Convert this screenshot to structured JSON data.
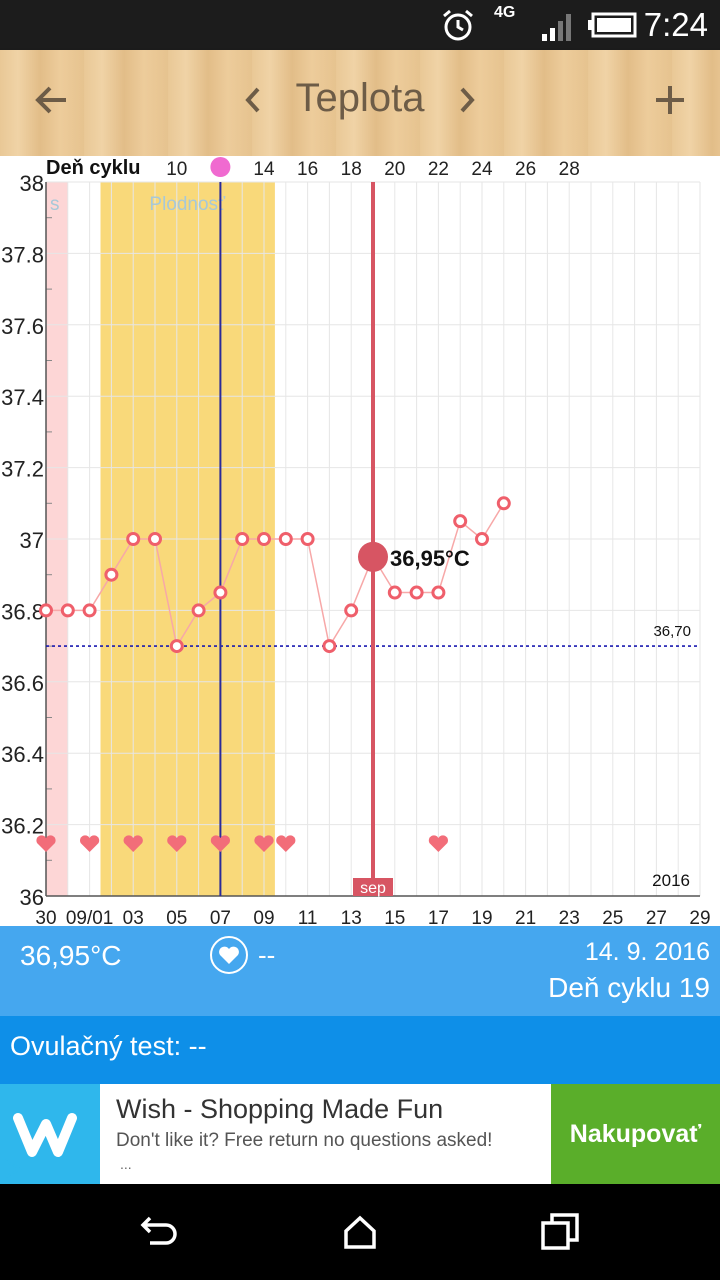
{
  "status_bar": {
    "time": "7:24",
    "network": "4G",
    "icons": [
      "alarm-icon",
      "network-4g-icon",
      "signal-icon",
      "battery-icon"
    ]
  },
  "app_bar": {
    "title": "Teplota",
    "back_icon": "arrow-left-icon",
    "prev_icon": "chevron-left-icon",
    "next_icon": "chevron-right-icon",
    "add_icon": "plus-icon"
  },
  "chart_data": {
    "type": "line",
    "top_axis_label": "Deň cyklu",
    "top_ticks": [
      "10",
      "14",
      "16",
      "18",
      "20",
      "22",
      "24",
      "26",
      "28"
    ],
    "x_labels": [
      "30",
      "09/01",
      "03",
      "05",
      "07",
      "09",
      "11",
      "13",
      "15",
      "17",
      "19",
      "21",
      "23",
      "25",
      "27",
      "29"
    ],
    "y_labels": [
      "38",
      "37.8",
      "37.6",
      "37.4",
      "37.2",
      "37",
      "36.8",
      "36.6",
      "36.4",
      "36.2",
      "36"
    ],
    "ylim": [
      36,
      38
    ],
    "year_label": "2016",
    "month_label": "sep",
    "fertile_label": "Plodnosť",
    "period_label": "s",
    "baseline": {
      "value": 36.7,
      "label": "36,70"
    },
    "series": [
      {
        "values": [
          36.8,
          36.8,
          36.8,
          36.9,
          37.0,
          37.0,
          36.7,
          36.8,
          36.85,
          37.0,
          37.0,
          37.0,
          37.0,
          36.7,
          36.8,
          36.95,
          36.85,
          36.85,
          36.85,
          37.05,
          37.0,
          37.1
        ]
      }
    ],
    "selected": {
      "index": 15,
      "label": "36,95°C"
    },
    "heart_day_indices": [
      0,
      2,
      4,
      6,
      8,
      10,
      11,
      18
    ],
    "fertile_day_range": [
      3,
      10
    ],
    "period_day_range": [
      0,
      1
    ],
    "ovulation_day_index": 8,
    "colors": {
      "line": "#f7a8a8",
      "marker": "#ef5f6b",
      "fertile": "#f9d97a",
      "period": "#fdd6d6",
      "selected": "#d75563",
      "baseline": "#1a1ab0",
      "ovulation": "#2b2b9a"
    }
  },
  "info": {
    "temperature": "36,95°C",
    "heart_value": "--",
    "date": "14. 9. 2016",
    "cycle_day": "Deň cyklu 19"
  },
  "ovulation_test": {
    "label": "Ovulačný test: --"
  },
  "ad": {
    "title": "Wish - Shopping Made Fun",
    "text": "Don't like it? Free return no questions asked!",
    "dots": "...",
    "cta": "Nakupovať"
  },
  "nav": {
    "back_icon": "back-icon",
    "home_icon": "home-icon",
    "recents_icon": "recents-icon"
  }
}
